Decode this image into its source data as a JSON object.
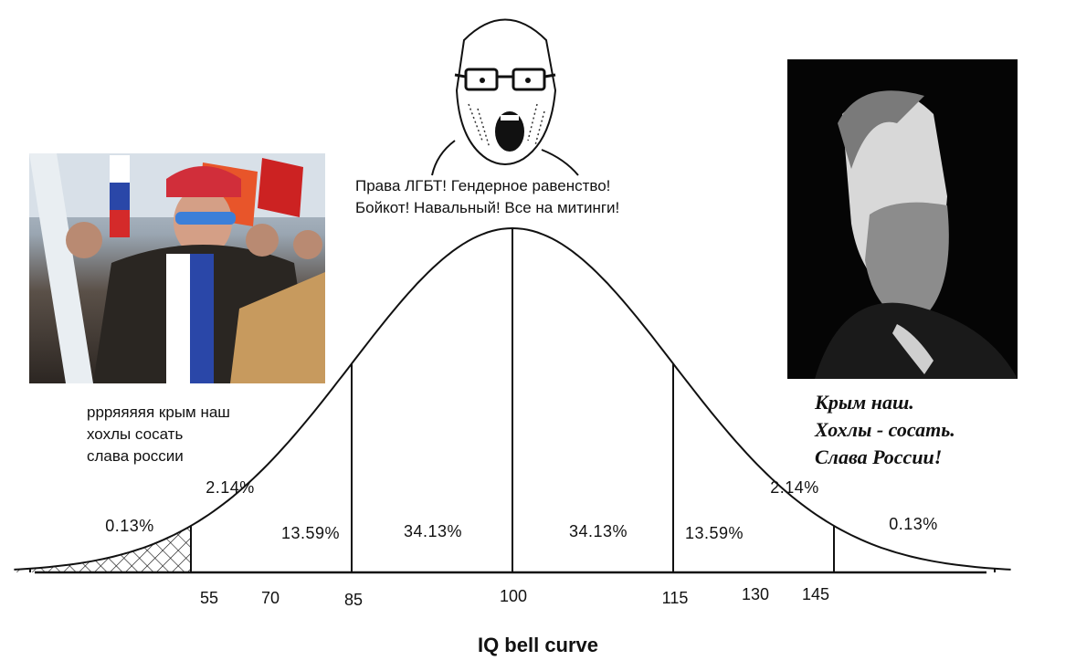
{
  "captions": {
    "center": [
      "Права ЛГБТ! Гендерное равенство!",
      "Бойкот! Навальный! Все на митинги!"
    ],
    "left": [
      "ррряяяяя крым наш",
      "хохлы сосать",
      "слава россии"
    ],
    "right": [
      "Крым наш.",
      "Хохлы - сосать.",
      "Слава России!"
    ]
  },
  "chart_data": {
    "type": "area",
    "title": "",
    "xlabel": "IQ bell curve",
    "ylabel": "",
    "distribution": {
      "mean": 100,
      "sd": 15
    },
    "x_ticks": [
      55,
      70,
      85,
      100,
      115,
      130,
      145
    ],
    "regions": [
      {
        "label": "0.13%"
      },
      {
        "label": "2.14%"
      },
      {
        "label": "13.59%"
      },
      {
        "label": "34.13%"
      },
      {
        "label": "34.13%"
      },
      {
        "label": "13.59%"
      },
      {
        "label": "2.14%"
      },
      {
        "label": "0.13%"
      }
    ]
  },
  "images": {
    "left": "rally-crowd-photo",
    "center": "wojak-soyjak-icon",
    "right": "bearded-man-portrait"
  }
}
